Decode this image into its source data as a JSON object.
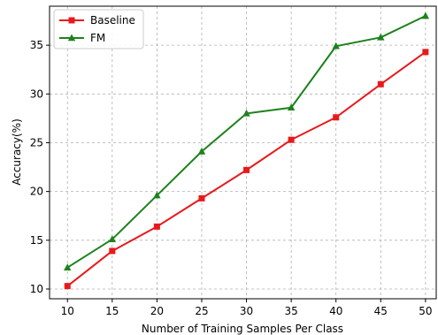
{
  "chart_data": {
    "type": "line",
    "xlabel": "Number of Training Samples Per Class",
    "ylabel": "Accuracy(%)",
    "x": [
      10,
      15,
      20,
      25,
      30,
      35,
      40,
      45,
      50
    ],
    "xlim": [
      8,
      51.2
    ],
    "ylim": [
      9,
      39
    ],
    "x_ticks": [
      10,
      15,
      20,
      25,
      30,
      35,
      40,
      45,
      50
    ],
    "y_ticks": [
      10,
      15,
      20,
      25,
      30,
      35
    ],
    "grid": true,
    "legend_position": "top-left",
    "series": [
      {
        "name": "Baseline",
        "color": "#e8191c",
        "marker": "square",
        "values": [
          10.3,
          13.9,
          16.4,
          19.3,
          22.2,
          25.3,
          27.6,
          31.0,
          34.3
        ]
      },
      {
        "name": "FM",
        "color": "#1c821c",
        "marker": "triangle",
        "values": [
          12.2,
          15.1,
          19.6,
          24.1,
          28.0,
          28.6,
          34.9,
          35.8,
          38.0
        ]
      }
    ]
  }
}
